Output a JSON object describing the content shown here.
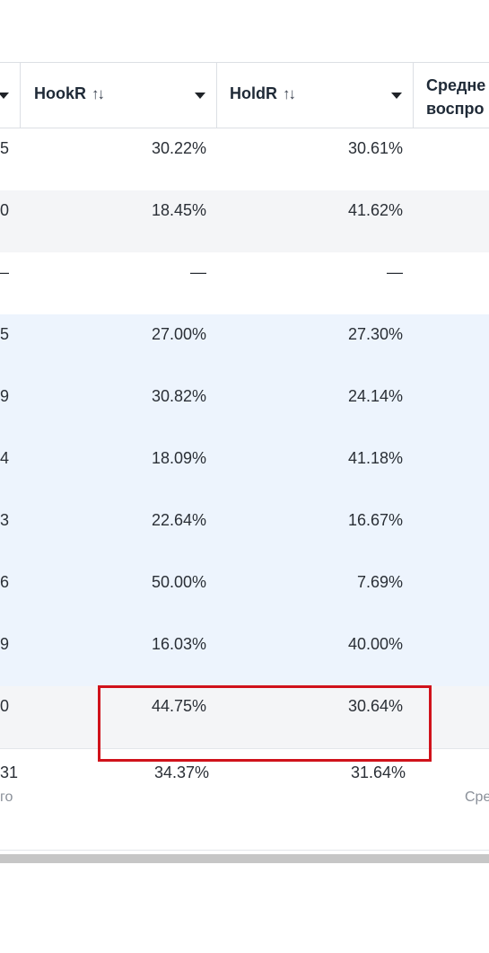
{
  "header": {
    "col0_label": "",
    "hook_label": "HookR",
    "hold_label": "HoldR",
    "sort_icon": "↑↓",
    "next_line1": "Средне",
    "next_line2": "воспро"
  },
  "rows": [
    {
      "edge": "5",
      "hook": "30.22%",
      "hold": "30.61%",
      "style": "white"
    },
    {
      "edge": "0",
      "hook": "18.45%",
      "hold": "41.62%",
      "style": "grey"
    },
    {
      "edge": "–",
      "hook": "—",
      "hold": "—",
      "style": "white"
    },
    {
      "edge": "5",
      "hook": "27.00%",
      "hold": "27.30%",
      "style": "blue"
    },
    {
      "edge": "9",
      "hook": "30.82%",
      "hold": "24.14%",
      "style": "blue"
    },
    {
      "edge": "4",
      "hook": "18.09%",
      "hold": "41.18%",
      "style": "blue"
    },
    {
      "edge": "3",
      "hook": "22.64%",
      "hold": "16.67%",
      "style": "blue"
    },
    {
      "edge": "6",
      "hook": "50.00%",
      "hold": "7.69%",
      "style": "blue"
    },
    {
      "edge": "9",
      "hook": "16.03%",
      "hold": "40.00%",
      "style": "blue"
    },
    {
      "edge": "0",
      "hook": "44.75%",
      "hold": "30.64%",
      "style": "grey"
    }
  ],
  "summary": {
    "edge": "31",
    "edge_sub": "го",
    "hook": "34.37%",
    "hold": "31.64%",
    "right_sub": "Сре"
  },
  "colors": {
    "highlight": "#d0121b",
    "row_blue": "#edf4fd",
    "row_grey": "#f4f5f7"
  }
}
